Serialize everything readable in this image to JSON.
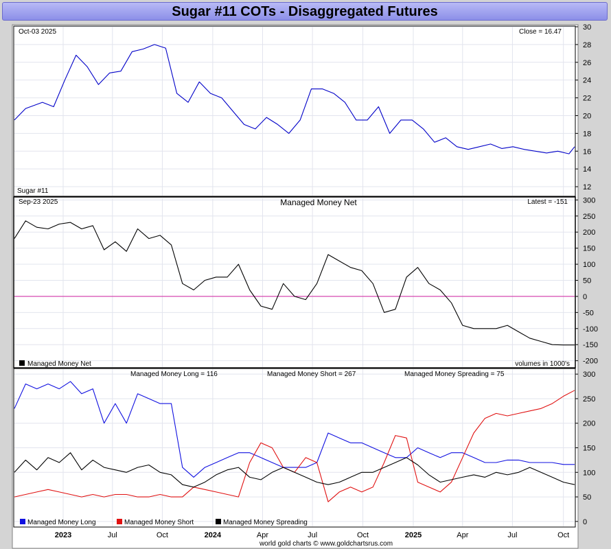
{
  "title": "Sugar #11 COTs - Disaggregated Futures",
  "footer": "world gold charts © www.goldchartsrus.com",
  "colors": {
    "price": "#0000c8",
    "net": "#000000",
    "zero": "#d020a0",
    "long": "#1010e0",
    "short": "#e01010",
    "spreading": "#000000"
  },
  "x_axis": {
    "labels": [
      {
        "label": "2023",
        "bold": true,
        "t": 0.087
      },
      {
        "label": "Jul",
        "bold": false,
        "t": 0.175
      },
      {
        "label": "Oct",
        "bold": false,
        "t": 0.264
      },
      {
        "label": "2024",
        "bold": true,
        "t": 0.354
      },
      {
        "label": "Apr",
        "bold": false,
        "t": 0.443
      },
      {
        "label": "Jul",
        "bold": false,
        "t": 0.532
      },
      {
        "label": "Oct",
        "bold": false,
        "t": 0.622
      },
      {
        "label": "2025",
        "bold": true,
        "t": 0.712
      },
      {
        "label": "Apr",
        "bold": false,
        "t": 0.8
      },
      {
        "label": "Jul",
        "bold": false,
        "t": 0.889
      },
      {
        "label": "Oct",
        "bold": false,
        "t": 0.98
      }
    ]
  },
  "chart_data": [
    {
      "type": "line",
      "name": "price",
      "date_label": "Oct-03  2025",
      "latest_label": "Close = 16.47",
      "series_label": "Sugar #11",
      "ylim": [
        11,
        30
      ],
      "yticks": [
        12,
        14,
        16,
        18,
        20,
        22,
        24,
        26,
        28,
        30
      ],
      "x": [
        0,
        0.02,
        0.05,
        0.07,
        0.09,
        0.11,
        0.13,
        0.15,
        0.17,
        0.19,
        0.21,
        0.23,
        0.25,
        0.27,
        0.29,
        0.31,
        0.33,
        0.35,
        0.37,
        0.39,
        0.41,
        0.43,
        0.45,
        0.47,
        0.49,
        0.51,
        0.53,
        0.55,
        0.57,
        0.59,
        0.61,
        0.63,
        0.65,
        0.67,
        0.69,
        0.71,
        0.73,
        0.75,
        0.77,
        0.79,
        0.81,
        0.83,
        0.85,
        0.87,
        0.89,
        0.91,
        0.93,
        0.95,
        0.97,
        0.99,
        1
      ],
      "values": [
        19.5,
        20.8,
        21.5,
        21.0,
        24.0,
        26.8,
        25.5,
        23.5,
        24.8,
        25.0,
        27.2,
        27.5,
        28.0,
        27.6,
        22.5,
        21.5,
        23.8,
        22.5,
        22.0,
        20.5,
        19.0,
        18.5,
        19.8,
        19.0,
        18.0,
        19.5,
        23.0,
        23.0,
        22.5,
        21.5,
        19.5,
        19.5,
        21.0,
        18.0,
        19.5,
        19.5,
        18.5,
        17.0,
        17.5,
        16.5,
        16.2,
        16.5,
        16.8,
        16.3,
        16.5,
        16.2,
        16.0,
        15.8,
        16.0,
        15.7,
        16.5
      ]
    },
    {
      "type": "line",
      "name": "managed_money_net",
      "title": "Managed Money Net",
      "date_label": "Sep-23  2025",
      "latest_label": "Latest = -151",
      "legend": "Managed Money Net",
      "units_label": "volumes in 1000's",
      "ylim": [
        -220,
        305
      ],
      "yticks": [
        300,
        250,
        200,
        150,
        100,
        50,
        0,
        -50,
        -100,
        -150,
        -200
      ],
      "x": [
        0,
        0.02,
        0.04,
        0.06,
        0.08,
        0.1,
        0.12,
        0.14,
        0.16,
        0.18,
        0.2,
        0.22,
        0.24,
        0.26,
        0.28,
        0.3,
        0.32,
        0.34,
        0.36,
        0.38,
        0.4,
        0.42,
        0.44,
        0.46,
        0.48,
        0.5,
        0.52,
        0.54,
        0.56,
        0.58,
        0.6,
        0.62,
        0.64,
        0.66,
        0.68,
        0.7,
        0.72,
        0.74,
        0.76,
        0.78,
        0.8,
        0.82,
        0.84,
        0.86,
        0.88,
        0.9,
        0.92,
        0.94,
        0.96,
        0.98,
        1
      ],
      "values": [
        180,
        235,
        215,
        210,
        225,
        230,
        210,
        220,
        145,
        170,
        140,
        210,
        180,
        190,
        160,
        40,
        20,
        50,
        60,
        60,
        100,
        20,
        -30,
        -40,
        40,
        0,
        -10,
        40,
        130,
        110,
        90,
        80,
        40,
        -50,
        -40,
        60,
        90,
        40,
        20,
        -20,
        -90,
        -100,
        -100,
        -100,
        -90,
        -110,
        -130,
        -140,
        -150,
        -151,
        -151
      ]
    },
    {
      "type": "line",
      "name": "managed_money_positions",
      "ylim": [
        -10,
        310
      ],
      "yticks": [
        300,
        250,
        200,
        150,
        100,
        50,
        0
      ],
      "series": [
        {
          "name": "Managed Money Long",
          "header": "Managed Money Long = 116",
          "color": "#1010e0",
          "x": [
            0,
            0.02,
            0.04,
            0.06,
            0.08,
            0.1,
            0.12,
            0.14,
            0.16,
            0.18,
            0.2,
            0.22,
            0.24,
            0.26,
            0.28,
            0.3,
            0.32,
            0.34,
            0.36,
            0.38,
            0.4,
            0.42,
            0.44,
            0.46,
            0.48,
            0.5,
            0.52,
            0.54,
            0.56,
            0.58,
            0.6,
            0.62,
            0.64,
            0.66,
            0.68,
            0.7,
            0.72,
            0.74,
            0.76,
            0.78,
            0.8,
            0.82,
            0.84,
            0.86,
            0.88,
            0.9,
            0.92,
            0.94,
            0.96,
            0.98,
            1
          ],
          "values": [
            230,
            280,
            270,
            280,
            270,
            285,
            260,
            270,
            200,
            240,
            200,
            260,
            250,
            240,
            240,
            110,
            90,
            110,
            120,
            130,
            140,
            140,
            130,
            120,
            110,
            110,
            110,
            120,
            180,
            170,
            160,
            160,
            150,
            140,
            130,
            130,
            150,
            140,
            130,
            140,
            140,
            130,
            120,
            120,
            125,
            125,
            120,
            120,
            120,
            116,
            116
          ]
        },
        {
          "name": "Managed Money Short",
          "header": "Managed Money Short = 267",
          "color": "#e01010",
          "x": [
            0,
            0.02,
            0.04,
            0.06,
            0.08,
            0.1,
            0.12,
            0.14,
            0.16,
            0.18,
            0.2,
            0.22,
            0.24,
            0.26,
            0.28,
            0.3,
            0.32,
            0.34,
            0.36,
            0.38,
            0.4,
            0.42,
            0.44,
            0.46,
            0.48,
            0.5,
            0.52,
            0.54,
            0.56,
            0.58,
            0.6,
            0.62,
            0.64,
            0.66,
            0.68,
            0.7,
            0.72,
            0.74,
            0.76,
            0.78,
            0.8,
            0.82,
            0.84,
            0.86,
            0.88,
            0.9,
            0.92,
            0.94,
            0.96,
            0.98,
            1
          ],
          "values": [
            50,
            55,
            60,
            65,
            60,
            55,
            50,
            55,
            50,
            55,
            55,
            50,
            50,
            55,
            50,
            50,
            70,
            65,
            60,
            55,
            50,
            120,
            160,
            150,
            110,
            100,
            130,
            120,
            40,
            60,
            70,
            60,
            70,
            120,
            175,
            170,
            80,
            70,
            60,
            80,
            130,
            180,
            210,
            220,
            215,
            220,
            225,
            230,
            240,
            255,
            267
          ]
        },
        {
          "name": "Managed Money Spreading",
          "header": "Managed Money Spreading = 75",
          "color": "#000000",
          "x": [
            0,
            0.02,
            0.04,
            0.06,
            0.08,
            0.1,
            0.12,
            0.14,
            0.16,
            0.18,
            0.2,
            0.22,
            0.24,
            0.26,
            0.28,
            0.3,
            0.32,
            0.34,
            0.36,
            0.38,
            0.4,
            0.42,
            0.44,
            0.46,
            0.48,
            0.5,
            0.52,
            0.54,
            0.56,
            0.58,
            0.6,
            0.62,
            0.64,
            0.66,
            0.68,
            0.7,
            0.72,
            0.74,
            0.76,
            0.78,
            0.8,
            0.82,
            0.84,
            0.86,
            0.88,
            0.9,
            0.92,
            0.94,
            0.96,
            0.98,
            1
          ],
          "values": [
            100,
            125,
            105,
            130,
            120,
            140,
            105,
            125,
            110,
            105,
            100,
            110,
            115,
            100,
            95,
            75,
            70,
            80,
            95,
            105,
            110,
            90,
            85,
            100,
            110,
            100,
            90,
            80,
            75,
            80,
            90,
            100,
            100,
            110,
            120,
            130,
            115,
            95,
            80,
            85,
            90,
            95,
            90,
            100,
            95,
            100,
            110,
            100,
            90,
            80,
            75
          ]
        }
      ]
    }
  ]
}
